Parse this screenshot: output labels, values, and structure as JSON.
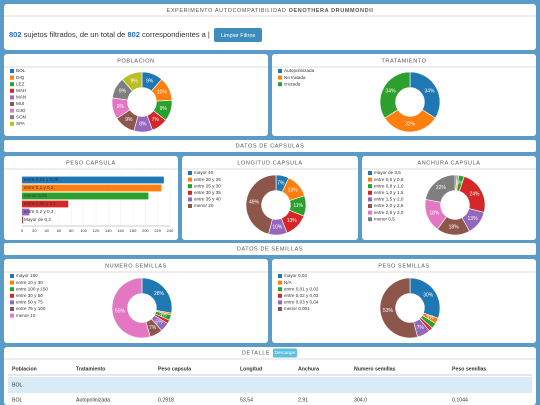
{
  "header": {
    "title": "EXPERIMENTO AUTOCOMPATIBILIDAD",
    "title_bold": "OENOTHERA DRUMMONDII",
    "count_filtered": "802",
    "text_1": "sujetos filtrados, de un total de",
    "count_total": "802",
    "text_2": "correspondientes a |",
    "button": "Limpiar Filtros"
  },
  "sections": [
    "DATOS DE CAPSULAS",
    "DATOS DE SEMILLAS"
  ],
  "chart_data": [
    {
      "type": "pie",
      "donut": true,
      "title": "POBLACION",
      "categories": [
        "BOL",
        "DIQ",
        "LEZ",
        "MAH",
        "MAN",
        "MUI",
        "OJO",
        "SON",
        "SPA"
      ],
      "values": [
        9,
        10,
        9,
        7,
        8,
        9,
        9,
        9,
        9
      ],
      "value_labels": [
        "9%",
        "10%",
        "9%",
        "7%",
        "8%",
        "9%",
        "9%",
        "9%",
        "9%"
      ],
      "colors": [
        "#1f77b4",
        "#ff7f0e",
        "#2ca02c",
        "#d62728",
        "#9467bd",
        "#8c564b",
        "#e377c2",
        "#7f7f7f",
        "#bcbd22"
      ]
    },
    {
      "type": "pie",
      "donut": true,
      "title": "TRATAMIENTO",
      "categories": [
        "Autopolinizada",
        "No tratada",
        "cruzada"
      ],
      "values": [
        34,
        32,
        34
      ],
      "value_labels": [
        "34%",
        "32%",
        "34%"
      ],
      "colors": [
        "#1f77b4",
        "#ff7f0e",
        "#2ca02c"
      ]
    },
    {
      "type": "bar",
      "orientation": "horizontal",
      "title": "PESO CAPSULA",
      "categories": [
        "entre 0,01 y 0,05",
        "entre 0,1 y 0,2",
        "menor 0,01",
        "entre 0,05 y 0,1",
        "entre 0,2 y 0,3",
        "Mayor de 0,3"
      ],
      "values": [
        230,
        226,
        205,
        75,
        12,
        2
      ],
      "colors": [
        "#1f77b4",
        "#ff7f0e",
        "#2ca02c",
        "#d62728",
        "#9467bd",
        "#8c564b"
      ],
      "xlim": [
        0,
        240
      ],
      "xticks": [
        0,
        20,
        40,
        60,
        80,
        100,
        120,
        140,
        160,
        180,
        200,
        220,
        240
      ]
    },
    {
      "type": "pie",
      "donut": true,
      "title": "LONGITUD CAPSULA",
      "categories": [
        "mayor 40",
        "entre 20 y 25",
        "entre 25 y 30",
        "entre 30 y 35",
        "entre 35 y 40",
        "menor 20"
      ],
      "values": [
        7,
        13,
        11,
        13,
        10,
        46
      ],
      "value_labels": [
        "7%",
        "13%",
        "11%",
        "13%",
        "10%",
        "46%"
      ],
      "colors": [
        "#1f77b4",
        "#ff7f0e",
        "#2ca02c",
        "#d62728",
        "#9467bd",
        "#8c564b"
      ]
    },
    {
      "type": "pie",
      "donut": true,
      "title": "ANCHURA CAPSULA",
      "categories": [
        "mayor de 3,5",
        "entre 0,5 y 0,8",
        "entre 0,8 y 1,0",
        "entre 1,0 y 1,5",
        "entre 1,5 y 2,0",
        "entre 2,0 y 2,5",
        "entre 2,5 y 3,0",
        "menor 0,5"
      ],
      "values": [
        1,
        1,
        3,
        24,
        13,
        18,
        18,
        22
      ],
      "value_labels": [
        null,
        null,
        "3%",
        "24%",
        "13%",
        "18%",
        "18%",
        "22%"
      ],
      "colors": [
        "#1f77b4",
        "#ff7f0e",
        "#2ca02c",
        "#d62728",
        "#9467bd",
        "#8c564b",
        "#e377c2",
        "#7f7f7f"
      ]
    },
    {
      "type": "pie",
      "donut": true,
      "title": "NUMERO SEMILLAS",
      "categories": [
        "mayor 150",
        "entre 10 y 30",
        "entre 100 y 150",
        "entre 30 y 50",
        "entre 50 y 75",
        "entre 75 y 100",
        "menor 10"
      ],
      "values": [
        28,
        1,
        3,
        2,
        5,
        7,
        55
      ],
      "value_labels": [
        "28%",
        null,
        "3%",
        null,
        "5%",
        "7%",
        "55%"
      ],
      "colors": [
        "#1f77b4",
        "#ff7f0e",
        "#2ca02c",
        "#d62728",
        "#9467bd",
        "#8c564b",
        "#e377c2"
      ]
    },
    {
      "type": "pie",
      "donut": true,
      "title": "PESO SEMILLAS",
      "categories": [
        "mayor 0,04",
        "N/A",
        "entre 0,01 y 0,02",
        "entre 0,02 y 0,03",
        "entre 0,03 y 0,04",
        "menor 0,001"
      ],
      "values": [
        30,
        3,
        3,
        2,
        7,
        53
      ],
      "value_labels": [
        "30%",
        "3%",
        null,
        null,
        "7%",
        "53%"
      ],
      "colors": [
        "#1f77b4",
        "#ff7f0e",
        "#2ca02c",
        "#d62728",
        "#9467bd",
        "#8c564b"
      ]
    }
  ],
  "detail": {
    "title": "DETALLE",
    "button": "Descargar",
    "columns": [
      "Poblacion",
      "Tratamiento",
      "Peso capsula",
      "Longitud",
      "Anchura",
      "Numero semillas",
      "Peso semillas"
    ],
    "group": "BOL",
    "rows": [
      [
        "BOL",
        "Autopolinizada",
        "0,2918",
        "53,54",
        "2,91",
        "304,0",
        "0,1044"
      ]
    ]
  }
}
